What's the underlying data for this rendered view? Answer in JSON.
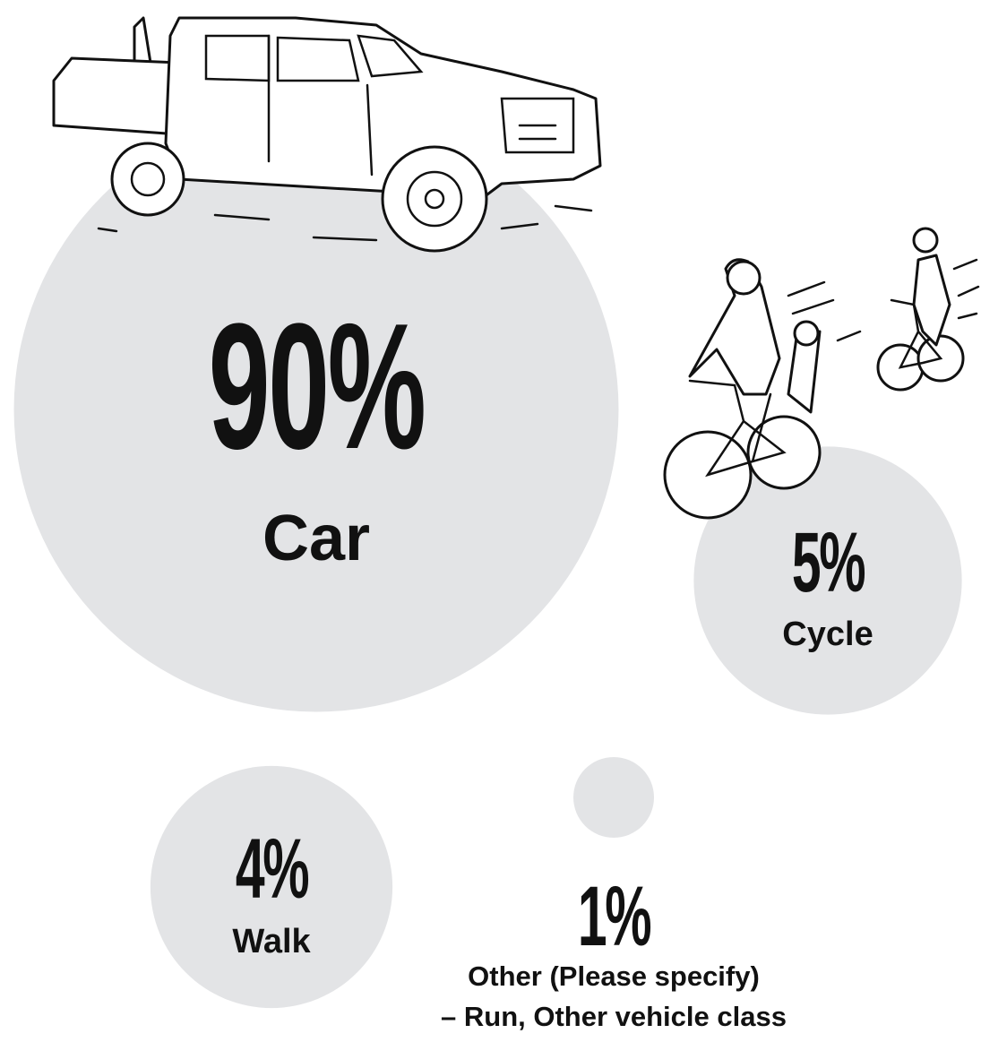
{
  "chart_data": {
    "type": "bubble",
    "categories": [
      "Car",
      "Cycle",
      "Walk",
      "Other (Please specify)"
    ],
    "values": [
      90,
      5,
      4,
      1
    ],
    "value_labels": [
      "90%",
      "5%",
      "4%",
      "1%"
    ],
    "annotations": [
      "– Run, Other vehicle class"
    ],
    "color": "#e3e4e6"
  }
}
